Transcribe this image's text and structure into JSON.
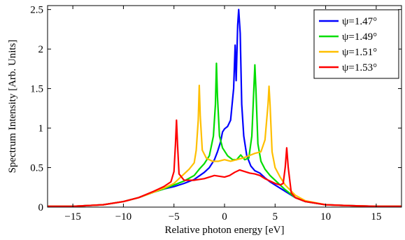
{
  "chart_data": {
    "type": "line",
    "title": "",
    "xlabel": "Relative photon energy [eV]",
    "ylabel": "Spectrum Intensity [Arb. Units]",
    "xlim": [
      -17.5,
      17.5
    ],
    "ylim": [
      0,
      2.55
    ],
    "xticks": [
      -15,
      -10,
      -5,
      0,
      5,
      10,
      15
    ],
    "xtick_labels": [
      "−15",
      "−10",
      "−5",
      "0",
      "5",
      "10",
      "15"
    ],
    "yticks": [
      0,
      0.5,
      1,
      1.5,
      2,
      2.5
    ],
    "ytick_labels": [
      "0",
      "0.5",
      "1",
      "1.5",
      "2",
      "2.5"
    ],
    "grid": false,
    "legend_position": "top-right",
    "series": [
      {
        "name": "ψ=1.47°",
        "color": "#0000ff",
        "points": [
          [
            -17.5,
            0.01
          ],
          [
            -15,
            0.01
          ],
          [
            -12,
            0.03
          ],
          [
            -10,
            0.07
          ],
          [
            -8.5,
            0.12
          ],
          [
            -7,
            0.19
          ],
          [
            -6,
            0.23
          ],
          [
            -5,
            0.26
          ],
          [
            -4,
            0.3
          ],
          [
            -3,
            0.35
          ],
          [
            -2,
            0.44
          ],
          [
            -1.5,
            0.5
          ],
          [
            -1,
            0.6
          ],
          [
            -0.7,
            0.7
          ],
          [
            -0.4,
            0.82
          ],
          [
            -0.2,
            0.95
          ],
          [
            0,
            0.99
          ],
          [
            0.3,
            1.02
          ],
          [
            0.6,
            1.1
          ],
          [
            0.9,
            1.5
          ],
          [
            1.05,
            2.05
          ],
          [
            1.15,
            1.6
          ],
          [
            1.3,
            2.3
          ],
          [
            1.4,
            2.5
          ],
          [
            1.55,
            2.2
          ],
          [
            1.7,
            1.3
          ],
          [
            1.9,
            0.9
          ],
          [
            2.2,
            0.65
          ],
          [
            2.6,
            0.52
          ],
          [
            3,
            0.46
          ],
          [
            3.5,
            0.43
          ],
          [
            4,
            0.37
          ],
          [
            4.5,
            0.32
          ],
          [
            5,
            0.28
          ],
          [
            6,
            0.2
          ],
          [
            7,
            0.12
          ],
          [
            8,
            0.07
          ],
          [
            10,
            0.03
          ],
          [
            12,
            0.02
          ],
          [
            15,
            0.01
          ],
          [
            17.5,
            0.01
          ]
        ]
      },
      {
        "name": "ψ=1.49°",
        "color": "#00dd00",
        "points": [
          [
            -17.5,
            0.01
          ],
          [
            -15,
            0.01
          ],
          [
            -12,
            0.03
          ],
          [
            -10,
            0.07
          ],
          [
            -8.5,
            0.12
          ],
          [
            -7,
            0.19
          ],
          [
            -6,
            0.23
          ],
          [
            -5,
            0.28
          ],
          [
            -4,
            0.33
          ],
          [
            -3,
            0.4
          ],
          [
            -2.5,
            0.48
          ],
          [
            -2,
            0.55
          ],
          [
            -1.5,
            0.65
          ],
          [
            -1.1,
            0.9
          ],
          [
            -0.9,
            1.3
          ],
          [
            -0.8,
            1.82
          ],
          [
            -0.7,
            1.4
          ],
          [
            -0.5,
            0.9
          ],
          [
            -0.2,
            0.75
          ],
          [
            0.3,
            0.65
          ],
          [
            0.8,
            0.6
          ],
          [
            1.2,
            0.6
          ],
          [
            1.6,
            0.66
          ],
          [
            2,
            0.6
          ],
          [
            2.4,
            0.62
          ],
          [
            2.7,
            0.9
          ],
          [
            2.9,
            1.5
          ],
          [
            3,
            1.8
          ],
          [
            3.1,
            1.5
          ],
          [
            3.3,
            0.8
          ],
          [
            3.6,
            0.58
          ],
          [
            4,
            0.48
          ],
          [
            4.5,
            0.4
          ],
          [
            5,
            0.34
          ],
          [
            6,
            0.22
          ],
          [
            7,
            0.12
          ],
          [
            8,
            0.07
          ],
          [
            10,
            0.03
          ],
          [
            12,
            0.02
          ],
          [
            15,
            0.01
          ],
          [
            17.5,
            0.01
          ]
        ]
      },
      {
        "name": "ψ=1.51°",
        "color": "#ffbf00",
        "points": [
          [
            -17.5,
            0.01
          ],
          [
            -15,
            0.01
          ],
          [
            -12,
            0.03
          ],
          [
            -10,
            0.07
          ],
          [
            -8.5,
            0.12
          ],
          [
            -7,
            0.19
          ],
          [
            -6,
            0.24
          ],
          [
            -5,
            0.3
          ],
          [
            -4.5,
            0.36
          ],
          [
            -4,
            0.42
          ],
          [
            -3.5,
            0.48
          ],
          [
            -3,
            0.56
          ],
          [
            -2.8,
            0.72
          ],
          [
            -2.6,
            1.1
          ],
          [
            -2.5,
            1.54
          ],
          [
            -2.4,
            1.15
          ],
          [
            -2.2,
            0.72
          ],
          [
            -1.8,
            0.62
          ],
          [
            -1.2,
            0.58
          ],
          [
            -0.6,
            0.58
          ],
          [
            0,
            0.6
          ],
          [
            0.6,
            0.58
          ],
          [
            1.2,
            0.6
          ],
          [
            1.8,
            0.62
          ],
          [
            2.4,
            0.65
          ],
          [
            3,
            0.68
          ],
          [
            3.6,
            0.7
          ],
          [
            4,
            0.85
          ],
          [
            4.3,
            1.3
          ],
          [
            4.4,
            1.53
          ],
          [
            4.5,
            1.3
          ],
          [
            4.7,
            0.7
          ],
          [
            5,
            0.5
          ],
          [
            5.5,
            0.38
          ],
          [
            6,
            0.28
          ],
          [
            7,
            0.15
          ],
          [
            8,
            0.08
          ],
          [
            10,
            0.03
          ],
          [
            12,
            0.02
          ],
          [
            15,
            0.01
          ],
          [
            17.5,
            0.01
          ]
        ]
      },
      {
        "name": "ψ=1.53°",
        "color": "#ff0000",
        "points": [
          [
            -17.5,
            0.01
          ],
          [
            -15,
            0.01
          ],
          [
            -12,
            0.03
          ],
          [
            -10,
            0.07
          ],
          [
            -8.5,
            0.12
          ],
          [
            -7,
            0.2
          ],
          [
            -6,
            0.26
          ],
          [
            -5.3,
            0.32
          ],
          [
            -5,
            0.45
          ],
          [
            -4.85,
            0.8
          ],
          [
            -4.75,
            1.1
          ],
          [
            -4.65,
            0.8
          ],
          [
            -4.5,
            0.42
          ],
          [
            -4,
            0.34
          ],
          [
            -3,
            0.34
          ],
          [
            -2,
            0.36
          ],
          [
            -1,
            0.4
          ],
          [
            0,
            0.38
          ],
          [
            0.5,
            0.4
          ],
          [
            1,
            0.44
          ],
          [
            1.5,
            0.47
          ],
          [
            2,
            0.45
          ],
          [
            2.5,
            0.43
          ],
          [
            3,
            0.42
          ],
          [
            3.5,
            0.4
          ],
          [
            4,
            0.36
          ],
          [
            4.5,
            0.33
          ],
          [
            5,
            0.3
          ],
          [
            5.5,
            0.28
          ],
          [
            5.8,
            0.3
          ],
          [
            6,
            0.5
          ],
          [
            6.15,
            0.75
          ],
          [
            6.3,
            0.5
          ],
          [
            6.6,
            0.18
          ],
          [
            7,
            0.12
          ],
          [
            8,
            0.07
          ],
          [
            10,
            0.03
          ],
          [
            12,
            0.02
          ],
          [
            15,
            0.01
          ],
          [
            17.5,
            0.01
          ]
        ]
      }
    ]
  }
}
